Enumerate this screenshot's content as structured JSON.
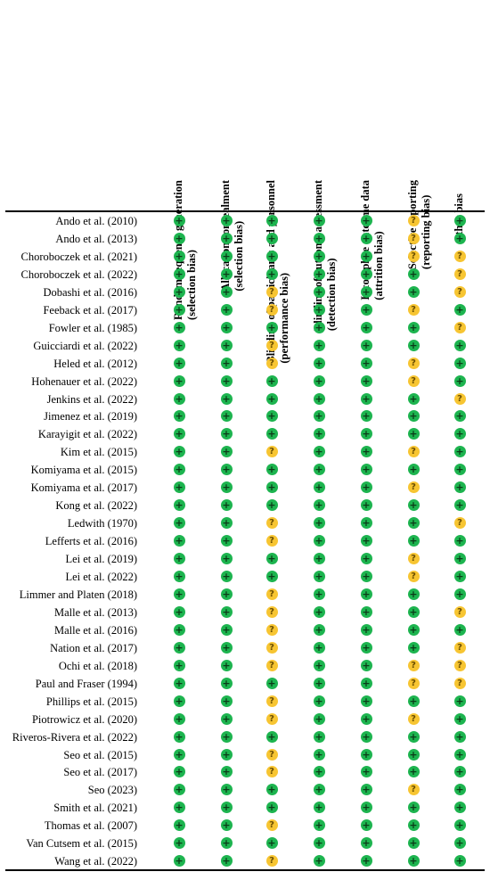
{
  "columns": [
    {
      "line1": "Random sequence generation",
      "line2": "(selection bias)"
    },
    {
      "line1": "Allocation concealment",
      "line2": "(selection bias)"
    },
    {
      "line1": "Blinding of participants and personnel",
      "line2": "(performance bias)"
    },
    {
      "line1": "Blinding of outcome assessment",
      "line2": "(detection bias)"
    },
    {
      "line1": "Incomplete outcome data",
      "line2": "(attrition bias)"
    },
    {
      "line1": "Selective reporting",
      "line2": "(reporting bias)"
    },
    {
      "line1": "Other bias",
      "line2": ""
    }
  ],
  "symbols": {
    "low": "+",
    "unclear": "?"
  },
  "colors": {
    "low": "#1db44f",
    "unclear": "#f7c532"
  },
  "studies": [
    {
      "name": "Ando et al. (2010)",
      "ratings": [
        "low",
        "low",
        "low",
        "low",
        "low",
        "unclear",
        "low"
      ]
    },
    {
      "name": "Ando et al. (2013)",
      "ratings": [
        "low",
        "low",
        "low",
        "low",
        "low",
        "unclear",
        "low"
      ]
    },
    {
      "name": "Choroboczek et al. (2021)",
      "ratings": [
        "low",
        "low",
        "low",
        "low",
        "low",
        "unclear",
        "unclear"
      ]
    },
    {
      "name": "Choroboczek et al. (2022)",
      "ratings": [
        "low",
        "low",
        "low",
        "low",
        "low",
        "low",
        "unclear"
      ]
    },
    {
      "name": "Dobashi et al. (2016)",
      "ratings": [
        "low",
        "low",
        "unclear",
        "low",
        "low",
        "low",
        "unclear"
      ]
    },
    {
      "name": "Feeback et al. (2017)",
      "ratings": [
        "low",
        "low",
        "unclear",
        "low",
        "low",
        "unclear",
        "low"
      ]
    },
    {
      "name": "Fowler et al. (1985)",
      "ratings": [
        "low",
        "low",
        "low",
        "low",
        "low",
        "low",
        "unclear"
      ]
    },
    {
      "name": "Guicciardi et al. (2022)",
      "ratings": [
        "low",
        "low",
        "unclear",
        "low",
        "low",
        "low",
        "low"
      ]
    },
    {
      "name": "Heled et al. (2012)",
      "ratings": [
        "low",
        "low",
        "unclear",
        "low",
        "low",
        "unclear",
        "low"
      ]
    },
    {
      "name": "Hohenauer et al. (2022)",
      "ratings": [
        "low",
        "low",
        "low",
        "low",
        "low",
        "unclear",
        "low"
      ]
    },
    {
      "name": "Jenkins et al. (2022)",
      "ratings": [
        "low",
        "low",
        "low",
        "low",
        "low",
        "low",
        "unclear"
      ]
    },
    {
      "name": "Jimenez et al. (2019)",
      "ratings": [
        "low",
        "low",
        "low",
        "low",
        "low",
        "low",
        "low"
      ]
    },
    {
      "name": "Karayigit et al. (2022)",
      "ratings": [
        "low",
        "low",
        "low",
        "low",
        "low",
        "low",
        "low"
      ]
    },
    {
      "name": "Kim et al. (2015)",
      "ratings": [
        "low",
        "low",
        "unclear",
        "low",
        "low",
        "unclear",
        "low"
      ]
    },
    {
      "name": "Komiyama et al. (2015)",
      "ratings": [
        "low",
        "low",
        "low",
        "low",
        "low",
        "low",
        "low"
      ]
    },
    {
      "name": "Komiyama et al. (2017)",
      "ratings": [
        "low",
        "low",
        "low",
        "low",
        "low",
        "unclear",
        "low"
      ]
    },
    {
      "name": "Kong et al. (2022)",
      "ratings": [
        "low",
        "low",
        "low",
        "low",
        "low",
        "low",
        "low"
      ]
    },
    {
      "name": "Ledwith (1970)",
      "ratings": [
        "low",
        "low",
        "unclear",
        "low",
        "low",
        "low",
        "unclear"
      ]
    },
    {
      "name": "Lefferts et al. (2016)",
      "ratings": [
        "low",
        "low",
        "unclear",
        "low",
        "low",
        "low",
        "low"
      ]
    },
    {
      "name": "Lei et al. (2019)",
      "ratings": [
        "low",
        "low",
        "low",
        "low",
        "low",
        "unclear",
        "low"
      ]
    },
    {
      "name": "Lei et al. (2022)",
      "ratings": [
        "low",
        "low",
        "low",
        "low",
        "low",
        "unclear",
        "low"
      ]
    },
    {
      "name": "Limmer and Platen (2018)",
      "ratings": [
        "low",
        "low",
        "unclear",
        "low",
        "low",
        "low",
        "low"
      ]
    },
    {
      "name": "Malle et al. (2013)",
      "ratings": [
        "low",
        "low",
        "unclear",
        "low",
        "low",
        "low",
        "unclear"
      ]
    },
    {
      "name": "Malle et al. (2016)",
      "ratings": [
        "low",
        "low",
        "unclear",
        "low",
        "low",
        "low",
        "low"
      ]
    },
    {
      "name": "Nation et al. (2017)",
      "ratings": [
        "low",
        "low",
        "unclear",
        "low",
        "low",
        "low",
        "unclear"
      ]
    },
    {
      "name": "Ochi et al. (2018)",
      "ratings": [
        "low",
        "low",
        "unclear",
        "low",
        "low",
        "unclear",
        "unclear"
      ]
    },
    {
      "name": "Paul and Fraser (1994)",
      "ratings": [
        "low",
        "low",
        "low",
        "low",
        "low",
        "unclear",
        "unclear"
      ]
    },
    {
      "name": "Phillips et al. (2015)",
      "ratings": [
        "low",
        "low",
        "unclear",
        "low",
        "low",
        "low",
        "low"
      ]
    },
    {
      "name": "Piotrowicz et al. (2020)",
      "ratings": [
        "low",
        "low",
        "unclear",
        "low",
        "low",
        "unclear",
        "low"
      ]
    },
    {
      "name": "Riveros-Rivera et al. (2022)",
      "ratings": [
        "low",
        "low",
        "low",
        "low",
        "low",
        "low",
        "low"
      ]
    },
    {
      "name": "Seo et al. (2015)",
      "ratings": [
        "low",
        "low",
        "unclear",
        "low",
        "low",
        "low",
        "low"
      ]
    },
    {
      "name": "Seo et al. (2017)",
      "ratings": [
        "low",
        "low",
        "unclear",
        "low",
        "low",
        "low",
        "low"
      ]
    },
    {
      "name": "Seo (2023)",
      "ratings": [
        "low",
        "low",
        "low",
        "low",
        "low",
        "unclear",
        "low"
      ]
    },
    {
      "name": "Smith et al. (2021)",
      "ratings": [
        "low",
        "low",
        "low",
        "low",
        "low",
        "low",
        "low"
      ]
    },
    {
      "name": "Thomas et al. (2007)",
      "ratings": [
        "low",
        "low",
        "unclear",
        "low",
        "low",
        "low",
        "low"
      ]
    },
    {
      "name": "Van Cutsem et al. (2015)",
      "ratings": [
        "low",
        "low",
        "low",
        "low",
        "low",
        "low",
        "low"
      ]
    },
    {
      "name": "Wang et al. (2022)",
      "ratings": [
        "low",
        "low",
        "unclear",
        "low",
        "low",
        "low",
        "low"
      ]
    }
  ]
}
